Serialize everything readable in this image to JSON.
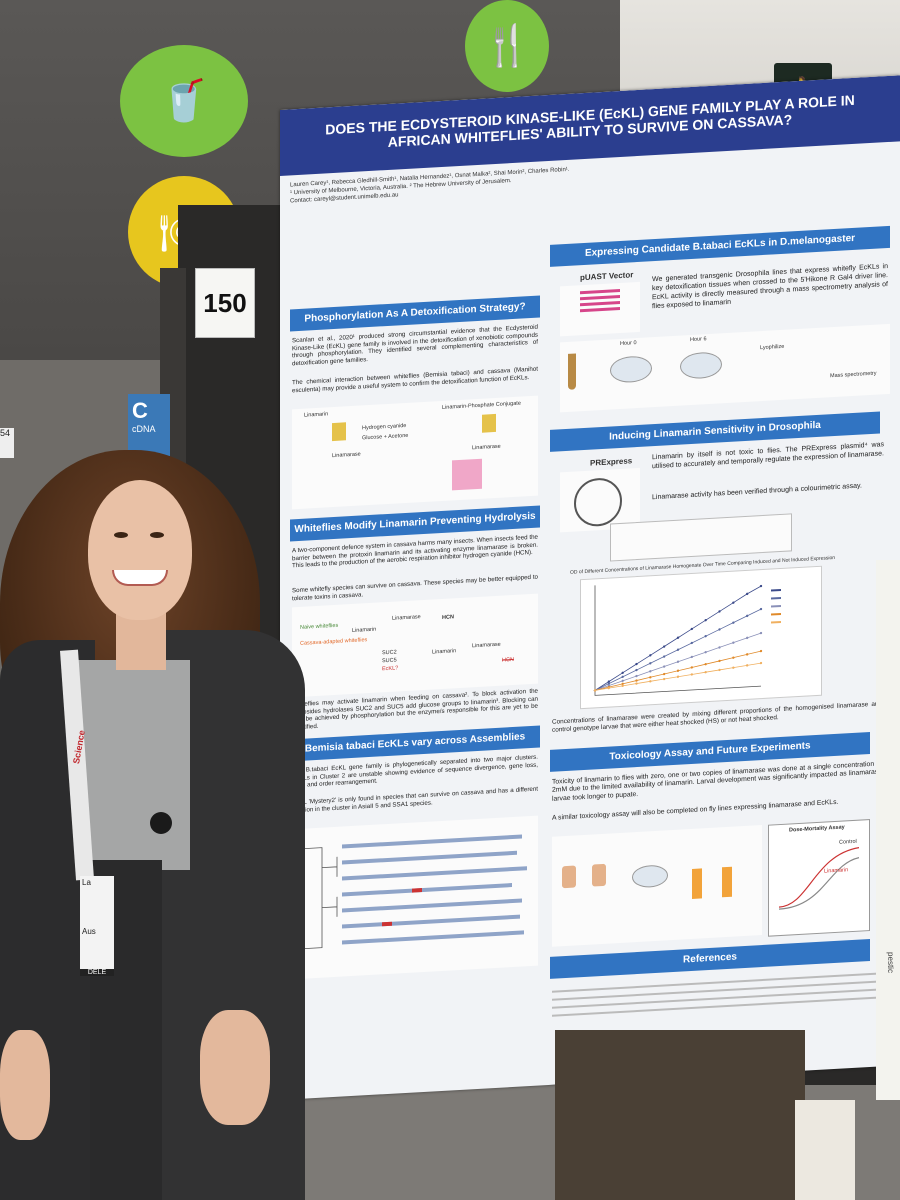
{
  "scene": {
    "board_number": "150",
    "sign_left_big": "C",
    "sign_left_small": "cDNA",
    "side_tag": "54",
    "badge_lanyard": "Science",
    "badge_line1": "La",
    "badge_line2": "Aus",
    "badge_footer": "DELE",
    "exit_icon": "exit-running-man-icon",
    "right_board_text": "pestic"
  },
  "poster": {
    "title": "DOES THE ECDYSTEROID KINASE-LIKE (EcKL) GENE FAMILY PLAY A ROLE IN AFRICAN WHITEFLIES' ABILITY TO SURVIVE ON CASSAVA?",
    "authors": "Lauren Carey¹, Rebecca Gledhill-Smith¹, Natalia Hernandez¹, Osnat Malka², Shai Morin², Charles Robin¹.",
    "affiliations": "¹ University of Melbourne, Victoria, Australia. ² The Hebrew University of Jerusalem.",
    "contact": "Contact: careyl@student.unimelb.edu.au",
    "sec1": {
      "header": "Phosphorylation As A Detoxification Strategy?",
      "p1": "Scanlan et al., 2020¹ produced strong circumstantial evidence that the Ecdysteroid Kinase-Like (EcKL) gene family is involved in the detoxification of xenobiotic compounds through phosphorylation. They identified several complementing characteristics of detoxification gene families.",
      "p2": "The chemical interaction between whiteflies (Bemisia tabaci) and cassava (Manihot esculenta) may provide a useful system to confirm the detoxification function of EcKLs.",
      "fig_labels": [
        "Linamarin",
        "Hydrogen cyanide",
        "Glucose + Acetone",
        "Linamarase",
        "Linamarin-Phosphate Conjugate",
        "Linamarase"
      ]
    },
    "sec2": {
      "header": "Whiteflies Modify Linamarin Preventing Hydrolysis",
      "p1": "A two-component defence system in cassava harms many insects. When insects feed the barrier between the protoxin linamarin and its activating enzyme linamarase is broken. This leads to the production of the aerobic respiration inhibitor hydrogen cyanide (HCN).",
      "p2": "Some whitefly species can survive on cassava. These species may be better equipped to tolerate toxins in cassava.",
      "fig_labels": [
        "Naive whiteflies",
        "Cassava-adapted whiteflies",
        "Linamarin",
        "Linamarase",
        "HCN",
        "SUC2",
        "SUC5",
        "EcKL?",
        "Linamarin",
        "Linamarase",
        "HCN"
      ],
      "p3": "Whiteflies may activate linamarin when feeding on cassava². To block activation the glycosides hydrolases SUC2 and SUC5 add glucose groups to linamarin³. Blocking can also be achieved by phosphorylation but the enzyme/s responsible for this are yet to be identified."
    },
    "sec3": {
      "header": "Bemisia tabaci EcKLs vary across Assemblies",
      "p1": "The B.tabaci EcKL gene family is phylogenetically separated into two major clusters. EcKLs in Cluster 2 are unstable showing evidence of sequence divergence, gene loss, gain, and order rearrangement.",
      "p2": "EcKL 'Mystery2' is only found in species that can survive on cassava and has a different location in the cluster in AsiaII 5 and SSA1 species."
    },
    "sec4": {
      "header": "Expressing Candidate B.tabaci EcKLs in D.melanogaster",
      "vector_label": "pUAST Vector",
      "p1": "We generated transgenic Drosophila lines that express whitefly EcKLs in key detoxification tissues when crossed to the 5'Hikone R Gal4 driver line. EcKL activity is directly measured through a mass spectrometry analysis of flies exposed to linamarin",
      "fig_labels": [
        "Hour 0",
        "Hour 6",
        "Lyophilize",
        "Mass spectrometry"
      ]
    },
    "sec5": {
      "header": "Inducing Linamarin Sensitivity in Drosophila",
      "vector_label": "PRExpress",
      "p1": "Linamarin by itself is not toxic to flies. The PRExpress plasmid⁴ was utilised to accurately and temporally regulate the expression of linamarase.",
      "p2": "Linamarase activity has been verified through a colourimetric assay.",
      "chart_title": "OD of Different Concentrations of Linamarase Homogenate Over Time Comparing Induced and Not Induced Expression",
      "caption": "Concentrations of linamarase were created by mixing different proportions of the homogenised linamarase and control genotype larvae that were either heat shocked (HS) or not heat shocked."
    },
    "sec6": {
      "header": "Toxicology Assay and Future Experiments",
      "p1": "Toxicity of linamarin to flies with zero, one or two copies of linamarase was done at a single concentration of 2mM due to the limited availability of linamarin. Larval development was significantly impacted as linamarase larvae took longer to pupate.",
      "p2": "A similar toxicology assay will also be completed on fly lines expressing linamarase and EcKLs.",
      "assay_label": "Dose-Mortality Assay",
      "legend_control": "Control",
      "legend_treat": "Linamarin"
    },
    "sec7": {
      "header": "References"
    }
  },
  "chart_data": {
    "type": "line",
    "title": "OD of Different Concentrations of Linamarase Homogenate Over Time Comparing Induced and Not Induced Expression",
    "x": [
      0,
      1,
      2,
      3,
      4,
      5,
      6,
      7,
      8,
      9,
      10,
      11,
      12
    ],
    "series": [
      {
        "values": [
          0.05,
          0.13,
          0.21,
          0.29,
          0.37,
          0.45,
          0.53,
          0.61,
          0.69,
          0.77,
          0.85,
          0.93,
          1.0
        ]
      },
      {
        "values": [
          0.05,
          0.11,
          0.17,
          0.23,
          0.29,
          0.35,
          0.41,
          0.47,
          0.53,
          0.59,
          0.65,
          0.71,
          0.77
        ]
      },
      {
        "values": [
          0.05,
          0.09,
          0.13,
          0.17,
          0.21,
          0.25,
          0.29,
          0.33,
          0.37,
          0.41,
          0.45,
          0.49,
          0.53
        ]
      },
      {
        "values": [
          0.05,
          0.075,
          0.1,
          0.125,
          0.15,
          0.175,
          0.2,
          0.225,
          0.25,
          0.275,
          0.3,
          0.325,
          0.35
        ]
      },
      {
        "values": [
          0.05,
          0.065,
          0.08,
          0.095,
          0.11,
          0.125,
          0.14,
          0.155,
          0.17,
          0.185,
          0.2,
          0.215,
          0.23
        ]
      }
    ],
    "colors": [
      "#3b4a8a",
      "#5a6aa0",
      "#8a90b8",
      "#e08a2a",
      "#f0b060"
    ],
    "ylim": [
      0,
      1.1
    ],
    "grid": false
  }
}
